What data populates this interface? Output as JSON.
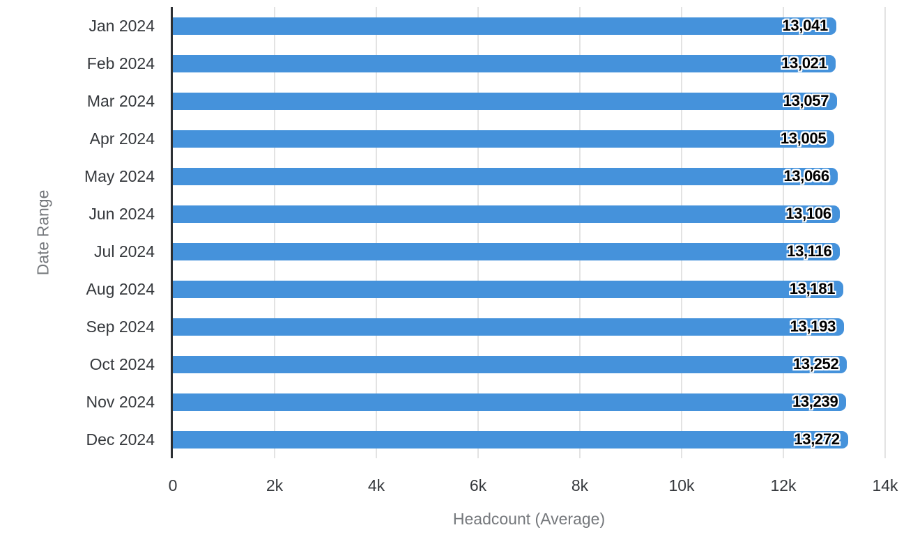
{
  "chart_data": {
    "type": "bar",
    "orientation": "horizontal",
    "title": "",
    "categories": [
      "Jan 2024",
      "Feb 2024",
      "Mar 2024",
      "Apr 2024",
      "May 2024",
      "Jun 2024",
      "Jul 2024",
      "Aug 2024",
      "Sep 2024",
      "Oct 2024",
      "Nov 2024",
      "Dec 2024"
    ],
    "values": [
      13041,
      13021,
      13057,
      13005,
      13066,
      13106,
      13116,
      13181,
      13193,
      13252,
      13239,
      13272
    ],
    "data_labels": [
      "13,041",
      "13,021",
      "13,057",
      "13,005",
      "13,066",
      "13,106",
      "13,116",
      "13,181",
      "13,193",
      "13,252",
      "13,239",
      "13,272"
    ],
    "xlabel": "Headcount (Average)",
    "ylabel": "Date Range",
    "xlim": [
      0,
      14000
    ],
    "x_ticks": [
      {
        "value": 0,
        "label": "0"
      },
      {
        "value": 2000,
        "label": "2k"
      },
      {
        "value": 4000,
        "label": "4k"
      },
      {
        "value": 6000,
        "label": "6k"
      },
      {
        "value": 8000,
        "label": "8k"
      },
      {
        "value": 10000,
        "label": "10k"
      },
      {
        "value": 12000,
        "label": "12k"
      },
      {
        "value": 14000,
        "label": "14k"
      }
    ],
    "grid": "vertical-only",
    "legend": "none",
    "colors": {
      "bar": "#4592DB",
      "gridline": "#e3e3e3",
      "axis_line": "#2c2f33",
      "category_label": "#35383c",
      "tick_label": "#35383c",
      "axis_title": "#75787c",
      "data_label": "#000000",
      "data_label_outline": "#ffffff",
      "background": "#ffffff"
    }
  }
}
